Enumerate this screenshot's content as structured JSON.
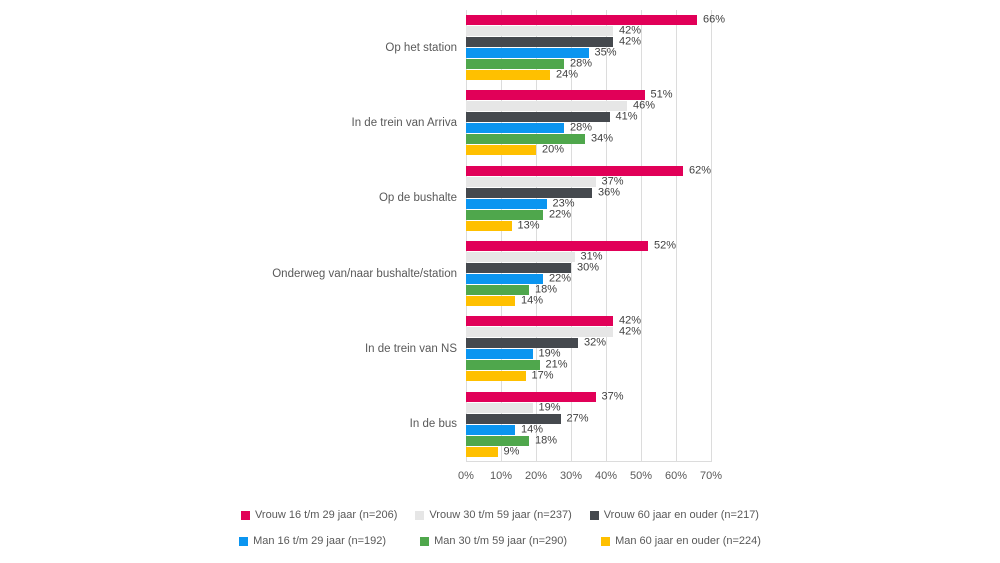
{
  "chart_data": {
    "type": "bar",
    "orientation": "horizontal",
    "title": "",
    "categories": [
      "Op het station",
      "In de trein van Arriva",
      "Op de bushalte",
      "Onderweg van/naar bushalte/station",
      "In de trein van NS",
      "In de bus"
    ],
    "series": [
      {
        "name": "Vrouw 16 t/m 29 jaar (n=206)",
        "color": "#e10058",
        "values": [
          66,
          51,
          62,
          52,
          42,
          37
        ]
      },
      {
        "name": "Vrouw 30 t/m 59 jaar (n=237)",
        "color": "#e6e6e6",
        "values": [
          42,
          46,
          37,
          31,
          42,
          19
        ]
      },
      {
        "name": "Vrouw 60 jaar en ouder (n=217)",
        "color": "#45494e",
        "values": [
          42,
          41,
          36,
          30,
          32,
          27
        ]
      },
      {
        "name": "Man 16 t/m 29 jaar (n=192)",
        "color": "#0b95f0",
        "values": [
          35,
          28,
          23,
          22,
          19,
          14
        ]
      },
      {
        "name": "Man 30 t/m 59 jaar (n=290)",
        "color": "#4fa74c",
        "values": [
          28,
          34,
          22,
          18,
          21,
          18
        ]
      },
      {
        "name": "Man 60 jaar en ouder (n=224)",
        "color": "#ffc000",
        "values": [
          24,
          20,
          13,
          14,
          17,
          9
        ]
      }
    ],
    "x_ticks": [
      "0%",
      "10%",
      "20%",
      "30%",
      "40%",
      "50%",
      "60%",
      "70%"
    ],
    "xlim": [
      0,
      70
    ],
    "value_suffix": "%",
    "grid": "vertical",
    "legend_position": "bottom",
    "colors": {
      "gridline": "#dcdcdc",
      "value_label": "#404040",
      "axis_text": "#595959"
    }
  }
}
